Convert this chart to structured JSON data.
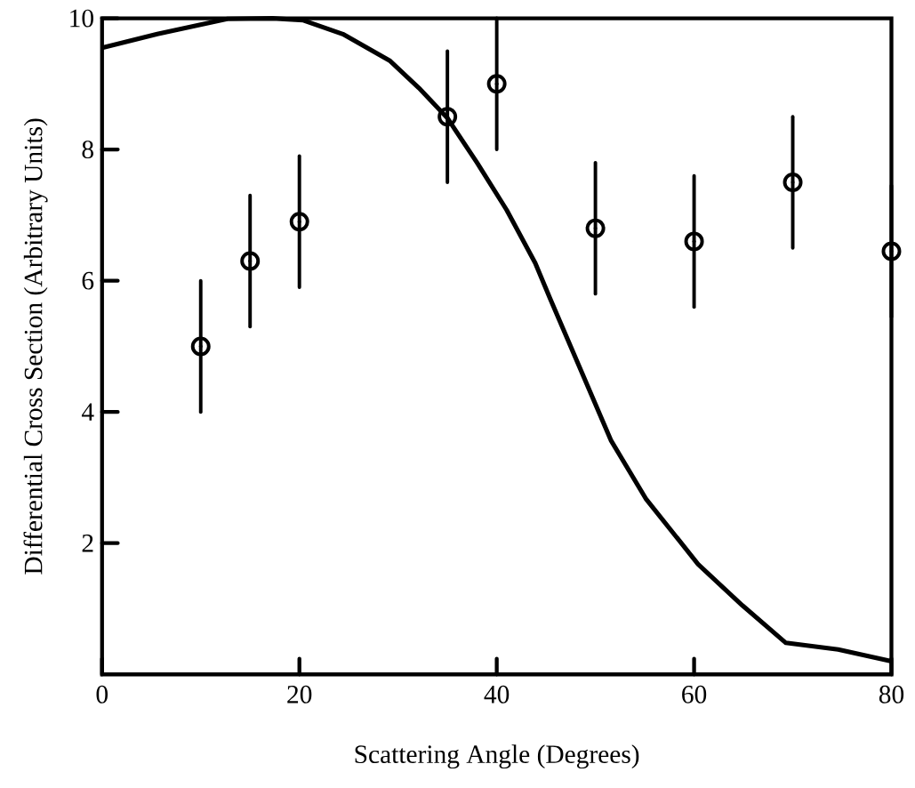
{
  "chart_data": {
    "type": "scatter",
    "xlabel": "Scattering Angle (Degrees)",
    "ylabel": "Differential Cross Section (Arbitrary Units)",
    "xlim": [
      0,
      80
    ],
    "ylim": [
      0,
      10
    ],
    "xticks": [
      0,
      20,
      40,
      60,
      80
    ],
    "yticks": [
      2,
      4,
      6,
      8,
      10
    ],
    "series": [
      {
        "color": "#000000",
        "marker": "circle",
        "x": [
          10,
          15,
          20,
          35,
          40,
          50,
          60,
          70,
          80
        ],
        "values": [
          5.0,
          6.3,
          6.9,
          8.5,
          9.0,
          6.8,
          6.6,
          7.5,
          6.45
        ],
        "errors": [
          1,
          1,
          1,
          1,
          1,
          1,
          1,
          1,
          1
        ]
      },
      {
        "type": "line",
        "color": "#000000",
        "marker": "none",
        "line_style": "solid",
        "x": [
          0,
          5.6,
          12.7,
          17.3,
          20.4,
          24.4,
          29.2,
          32.1,
          35,
          38,
          41,
          43.9,
          45.4,
          51.6,
          55.1,
          60.4,
          64.9,
          69.3,
          74.6,
          80
        ],
        "values": [
          9.55,
          9.76,
          9.99,
          10.0,
          9.97,
          9.76,
          9.35,
          8.94,
          8.48,
          7.8,
          7.08,
          6.27,
          5.73,
          3.56,
          2.68,
          1.68,
          1.05,
          0.48,
          0.38,
          0.2
        ]
      }
    ]
  }
}
